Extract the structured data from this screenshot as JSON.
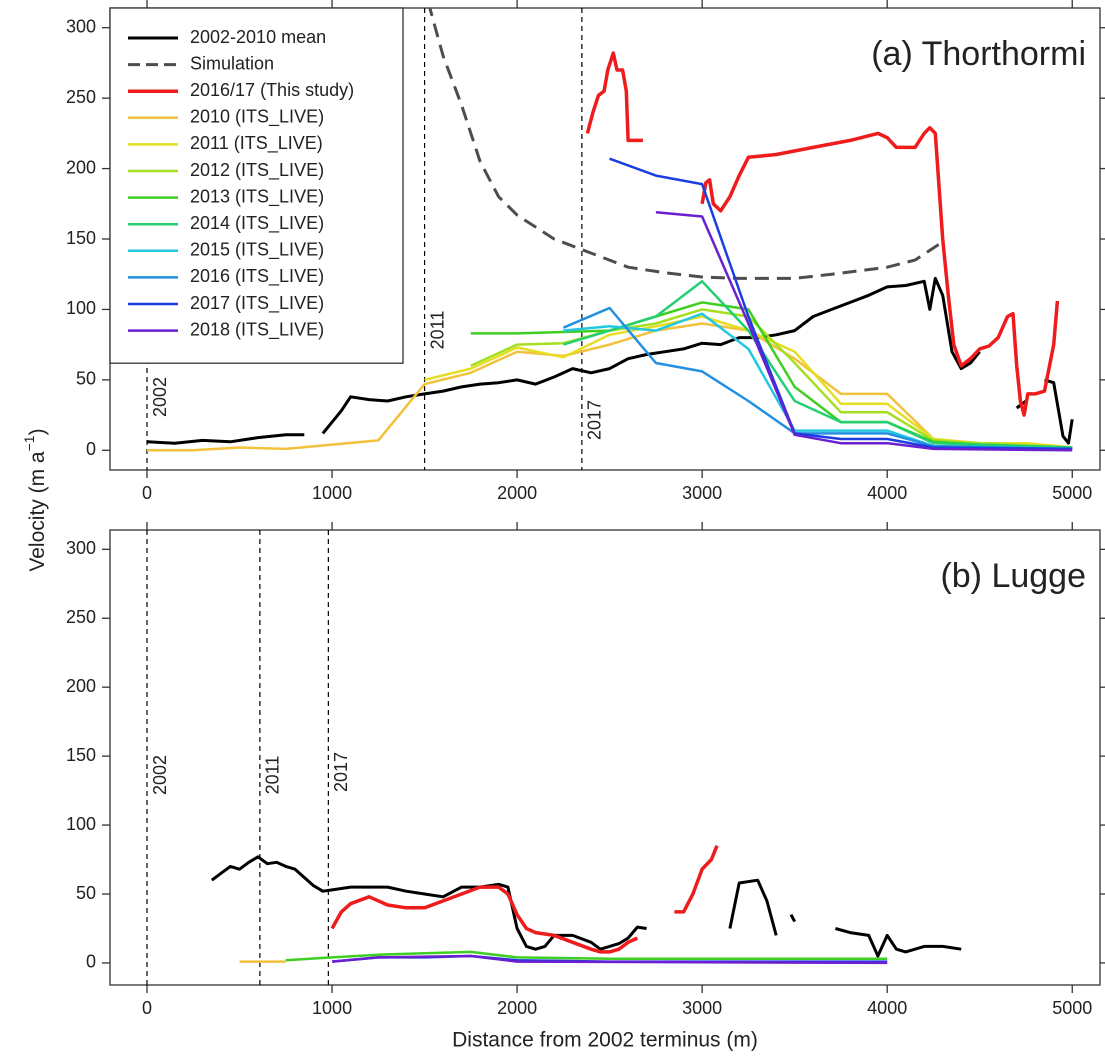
{
  "chart_data": [
    {
      "type": "line",
      "title": "(a) Thorthormi",
      "ylabel": [
        "Velocity (m a",
        "−1",
        ")"
      ],
      "legend": "upper left",
      "xlim": [
        -200,
        5150
      ],
      "ylim": [
        -14,
        314
      ],
      "xticks": [
        0,
        1000,
        2000,
        3000,
        4000,
        5000
      ],
      "yticks": [
        0,
        50,
        100,
        150,
        200,
        250,
        300
      ],
      "terminus_lines": [
        {
          "x": 0,
          "label": "2002"
        },
        {
          "x": 1500,
          "label": "2011"
        },
        {
          "x": 2350,
          "label": "2017"
        }
      ],
      "series": [
        {
          "name": "2002-2010 mean",
          "color": "#000000",
          "width": 3,
          "x": [
            0,
            150,
            300,
            450,
            600,
            750,
            850,
            900,
            950,
            1000,
            1050,
            1100,
            1200,
            1300,
            1400,
            1500,
            1600,
            1700,
            1800,
            1900,
            2000,
            2100,
            2200,
            2300,
            2400,
            2500,
            2600,
            2700,
            2800,
            2900,
            3000,
            3100,
            3200,
            3300,
            3400,
            3500,
            3600,
            3700,
            3800,
            3900,
            4000,
            4100,
            4200,
            4230,
            4260,
            4300,
            4350,
            4400,
            4450,
            4500,
            4600,
            4700,
            4750,
            4800,
            4850,
            4900,
            4950,
            4980,
            5000
          ],
          "values": [
            6,
            5,
            7,
            6,
            9,
            11,
            11,
            null,
            12,
            20,
            28,
            38,
            36,
            35,
            38,
            40,
            42,
            45,
            47,
            48,
            50,
            47,
            52,
            58,
            55,
            58,
            65,
            68,
            70,
            72,
            76,
            75,
            80,
            80,
            82,
            85,
            95,
            100,
            105,
            110,
            116,
            117,
            120,
            100,
            122,
            110,
            70,
            58,
            62,
            70,
            null,
            30,
            35,
            null,
            50,
            48,
            10,
            5,
            22
          ]
        },
        {
          "name": "Simulation",
          "color": "#4d4d4d",
          "width": 3,
          "dash": true,
          "x": [
            1520,
            1600,
            1700,
            1800,
            1900,
            2000,
            2200,
            2400,
            2600,
            2800,
            3000,
            3200,
            3500,
            3700,
            4000,
            4150,
            4300
          ],
          "values": [
            318,
            280,
            245,
            205,
            180,
            167,
            150,
            140,
            130,
            126,
            123,
            122,
            122,
            125,
            130,
            135,
            148
          ]
        },
        {
          "name": "2016/17 (This study)",
          "color": "#ee1c1c",
          "width": 3.5,
          "x": [
            2380,
            2410,
            2440,
            2470,
            2490,
            2520,
            2540,
            2570,
            2590,
            2600,
            2650,
            2680,
            2800,
            3000,
            3020,
            3040,
            3060,
            3100,
            3150,
            3200,
            3250,
            3400,
            3600,
            3800,
            3950,
            4000,
            4050,
            4150,
            4200,
            4230,
            4260,
            4300,
            4330,
            4360,
            4400,
            4450,
            4500,
            4550,
            4600,
            4650,
            4680,
            4700,
            4720,
            4740,
            4760,
            4800,
            4850,
            4900,
            4920
          ],
          "values": [
            225,
            240,
            252,
            255,
            270,
            282,
            270,
            270,
            255,
            220,
            220,
            220,
            null,
            175,
            190,
            192,
            175,
            170,
            180,
            195,
            208,
            210,
            215,
            220,
            225,
            222,
            215,
            215,
            225,
            229,
            225,
            150,
            110,
            75,
            60,
            65,
            72,
            74,
            80,
            95,
            97,
            60,
            35,
            25,
            40,
            40,
            42,
            75,
            106
          ]
        },
        {
          "name": "2010 (ITS_LIVE)",
          "color": "#f2c13d",
          "width": 2.5,
          "x": [
            0,
            250,
            500,
            750,
            1000,
            1250,
            1500,
            1750,
            2000,
            2250,
            2500,
            2750,
            3000,
            3250,
            3500,
            3750,
            4000,
            4250,
            4500,
            4750,
            5000
          ],
          "values": [
            0,
            0,
            2,
            1,
            4,
            7,
            47,
            55,
            70,
            67,
            75,
            85,
            90,
            85,
            65,
            40,
            40,
            8,
            5,
            5,
            2
          ]
        },
        {
          "name": "2011 (ITS_LIVE)",
          "color": "#e6de22",
          "width": 2.5,
          "x": [
            1500,
            1750,
            2000,
            2250,
            2500,
            2750,
            3000,
            3250,
            3500,
            3750,
            4000,
            4250,
            4500,
            4750,
            5000
          ],
          "values": [
            50,
            58,
            73,
            66,
            82,
            88,
            95,
            85,
            70,
            33,
            33,
            8,
            5,
            5,
            2
          ]
        },
        {
          "name": "2012 (ITS_LIVE)",
          "color": "#a6df22",
          "width": 2.5,
          "x": [
            1750,
            2000,
            2250,
            2500,
            2750,
            3000,
            3250,
            3500,
            3750,
            4000,
            4250,
            4500,
            5000
          ],
          "values": [
            60,
            75,
            76,
            85,
            90,
            100,
            95,
            62,
            27,
            27,
            7,
            5,
            2
          ]
        },
        {
          "name": "2013 (ITS_LIVE)",
          "color": "#3fcf22",
          "width": 2.5,
          "x": [
            1750,
            2000,
            2250,
            2500,
            2750,
            3000,
            3250,
            3500,
            3750,
            4000,
            4250,
            4500,
            5000
          ],
          "values": [
            83,
            83,
            84,
            85,
            95,
            105,
            100,
            45,
            20,
            20,
            6,
            4,
            2
          ]
        },
        {
          "name": "2014 (ITS_LIVE)",
          "color": "#22d070",
          "width": 2.5,
          "x": [
            2250,
            2500,
            2750,
            3000,
            3250,
            3500,
            3750,
            4000,
            4250,
            5000
          ],
          "values": [
            75,
            85,
            95,
            120,
            85,
            35,
            20,
            20,
            5,
            2
          ]
        },
        {
          "name": "2015 (ITS_LIVE)",
          "color": "#22c8e2",
          "width": 2.5,
          "x": [
            2250,
            2500,
            2750,
            3000,
            3250,
            3500,
            3750,
            4000,
            4250,
            5000
          ],
          "values": [
            85,
            88,
            85,
            97,
            72,
            14,
            14,
            14,
            3,
            1
          ]
        },
        {
          "name": "2016 (ITS_LIVE)",
          "color": "#2290e2",
          "width": 2.5,
          "x": [
            2250,
            2500,
            2750,
            3000,
            3250,
            3500,
            3750,
            4000,
            4250,
            5000
          ],
          "values": [
            87,
            101,
            62,
            56,
            35,
            12,
            12,
            12,
            3,
            1
          ]
        },
        {
          "name": "2017 (ITS_LIVE)",
          "color": "#1b3ee0",
          "width": 2.5,
          "x": [
            2500,
            2750,
            3000,
            3250,
            3500,
            3750,
            4000,
            4250,
            5000
          ],
          "values": [
            207,
            195,
            189,
            95,
            12,
            8,
            8,
            2,
            1
          ]
        },
        {
          "name": "2018 (ITS_LIVE)",
          "color": "#6a1fd0",
          "width": 2.5,
          "x": [
            2750,
            3000,
            3250,
            3500,
            3750,
            4000,
            4250,
            5000
          ],
          "values": [
            169,
            166,
            90,
            11,
            5,
            5,
            1,
            0
          ]
        }
      ]
    },
    {
      "type": "line",
      "title": "(b) Lugge",
      "xlabel": "Distance from 2002 terminus (m)",
      "xlim": [
        -200,
        5150
      ],
      "ylim": [
        -16,
        314
      ],
      "xticks": [
        0,
        1000,
        2000,
        3000,
        4000,
        5000
      ],
      "yticks": [
        0,
        50,
        100,
        150,
        200,
        250,
        300
      ],
      "terminus_lines": [
        {
          "x": 0,
          "label": "2002"
        },
        {
          "x": 610,
          "label": "2011"
        },
        {
          "x": 980,
          "label": "2017"
        }
      ],
      "series": [
        {
          "color": "#000000",
          "width": 3,
          "x": [
            350,
            400,
            450,
            500,
            550,
            600,
            650,
            700,
            750,
            800,
            850,
            900,
            950,
            1000,
            1100,
            1200,
            1300,
            1400,
            1500,
            1600,
            1700,
            1800,
            1900,
            1950,
            2000,
            2050,
            2100,
            2150,
            2200,
            2300,
            2400,
            2450,
            2500,
            2550,
            2600,
            2650,
            2700,
            2800,
            3150,
            3200,
            3300,
            3350,
            3400,
            3450,
            3480,
            3500,
            3600,
            3720,
            3800,
            3900,
            3950,
            4000,
            4050,
            4100,
            4200,
            4300,
            4400
          ],
          "values": [
            60,
            65,
            70,
            68,
            73,
            77,
            72,
            73,
            70,
            68,
            62,
            56,
            52,
            53,
            55,
            55,
            55,
            52,
            50,
            48,
            55,
            55,
            57,
            55,
            25,
            12,
            10,
            12,
            20,
            20,
            15,
            10,
            12,
            14,
            18,
            26,
            25,
            null,
            25,
            58,
            60,
            45,
            20,
            null,
            35,
            30,
            null,
            25,
            22,
            20,
            5,
            20,
            10,
            8,
            12,
            12,
            10
          ]
        },
        {
          "color": "#ee1c1c",
          "width": 3.5,
          "x": [
            1000,
            1050,
            1100,
            1200,
            1300,
            1400,
            1500,
            1600,
            1700,
            1800,
            1900,
            1950,
            2000,
            2050,
            2100,
            2200,
            2300,
            2400,
            2450,
            2500,
            2550,
            2600,
            2650,
            2800,
            2850,
            2900,
            2950,
            3000,
            3050,
            3080
          ],
          "values": [
            25,
            37,
            43,
            48,
            42,
            40,
            40,
            45,
            50,
            55,
            55,
            50,
            35,
            25,
            22,
            20,
            15,
            10,
            8,
            8,
            10,
            15,
            18,
            null,
            37,
            37,
            50,
            68,
            75,
            85
          ]
        },
        {
          "color": "#f2c13d",
          "width": 2.5,
          "x": [
            500,
            750
          ],
          "values": [
            1,
            1
          ]
        },
        {
          "color": "#3fcf22",
          "width": 2.5,
          "x": [
            750,
            1000,
            1250,
            1500,
            1750,
            2000,
            2500,
            3000,
            3500,
            4000
          ],
          "values": [
            2,
            4,
            6,
            7,
            8,
            4,
            3,
            3,
            3,
            3
          ]
        },
        {
          "color": "#1b3ee0",
          "width": 2.5,
          "x": [
            1000,
            1250,
            1500,
            1750,
            2000,
            2500,
            3000,
            4000
          ],
          "values": [
            1,
            4,
            4,
            5,
            2,
            1,
            1,
            1
          ]
        },
        {
          "color": "#6a1fd0",
          "width": 2.5,
          "x": [
            1000,
            1250,
            1750,
            2000,
            4000
          ],
          "values": [
            1,
            4,
            5,
            1,
            0
          ]
        }
      ]
    }
  ]
}
